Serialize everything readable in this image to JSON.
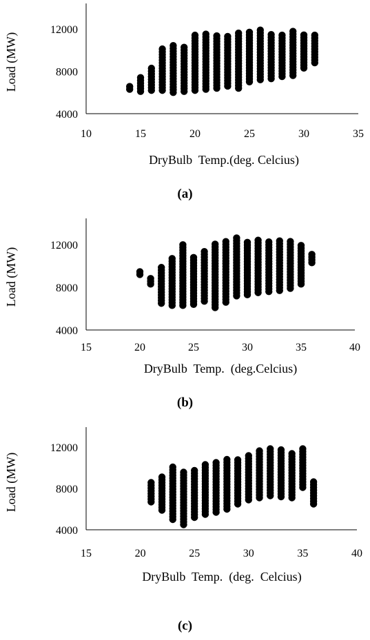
{
  "chart_data": [
    {
      "type": "scatter",
      "label": "(a)",
      "xlabel": "DryBulb  Temp.(deg. Celcius)",
      "ylabel": "Load (MW)",
      "xlim": [
        10,
        35
      ],
      "ylim": [
        4000,
        13000
      ],
      "xticks": [
        "10",
        "15",
        "20",
        "25",
        "30",
        "35"
      ],
      "yticks": [
        "4000",
        "8000",
        "12000"
      ],
      "marker_color": "#000000",
      "columns": [
        {
          "x": 14,
          "ymin": 6300,
          "ymax": 6700
        },
        {
          "x": 15,
          "ymin": 6100,
          "ymax": 7500
        },
        {
          "x": 16,
          "ymin": 6200,
          "ymax": 8300
        },
        {
          "x": 17,
          "ymin": 6200,
          "ymax": 10100
        },
        {
          "x": 18,
          "ymin": 6000,
          "ymax": 10500
        },
        {
          "x": 19,
          "ymin": 6100,
          "ymax": 10400
        },
        {
          "x": 20,
          "ymin": 6200,
          "ymax": 11500
        },
        {
          "x": 21,
          "ymin": 6300,
          "ymax": 11600
        },
        {
          "x": 22,
          "ymin": 6400,
          "ymax": 11500
        },
        {
          "x": 23,
          "ymin": 6600,
          "ymax": 11500
        },
        {
          "x": 24,
          "ymin": 6400,
          "ymax": 11800
        },
        {
          "x": 25,
          "ymin": 7000,
          "ymax": 11800
        },
        {
          "x": 26,
          "ymin": 7200,
          "ymax": 11900
        },
        {
          "x": 27,
          "ymin": 7300,
          "ymax": 11700
        },
        {
          "x": 28,
          "ymin": 7500,
          "ymax": 11600
        },
        {
          "x": 29,
          "ymin": 7600,
          "ymax": 11800
        },
        {
          "x": 30,
          "ymin": 8300,
          "ymax": 11500
        },
        {
          "x": 31,
          "ymin": 8800,
          "ymax": 11400
        }
      ]
    },
    {
      "type": "scatter",
      "label": "(b)",
      "xlabel": "DryBulb  Temp.  (deg.Celcius)",
      "ylabel": "Load (MW)",
      "xlim": [
        15,
        40
      ],
      "ylim": [
        4000,
        13000
      ],
      "xticks": [
        "15",
        "20",
        "25",
        "30",
        "35",
        "40"
      ],
      "yticks": [
        "4000",
        "8000",
        "12000"
      ],
      "marker_color": "#000000",
      "columns": [
        {
          "x": 20,
          "ymin": 9200,
          "ymax": 9700
        },
        {
          "x": 21,
          "ymin": 8300,
          "ymax": 8900
        },
        {
          "x": 22,
          "ymin": 6500,
          "ymax": 10000
        },
        {
          "x": 23,
          "ymin": 6300,
          "ymax": 10800
        },
        {
          "x": 24,
          "ymin": 6300,
          "ymax": 12000
        },
        {
          "x": 25,
          "ymin": 6400,
          "ymax": 10800
        },
        {
          "x": 26,
          "ymin": 6700,
          "ymax": 11400
        },
        {
          "x": 27,
          "ymin": 6100,
          "ymax": 12200
        },
        {
          "x": 28,
          "ymin": 6600,
          "ymax": 12500
        },
        {
          "x": 29,
          "ymin": 7200,
          "ymax": 12700
        },
        {
          "x": 30,
          "ymin": 7300,
          "ymax": 12400
        },
        {
          "x": 31,
          "ymin": 7500,
          "ymax": 12500
        },
        {
          "x": 32,
          "ymin": 7600,
          "ymax": 12400
        },
        {
          "x": 33,
          "ymin": 7700,
          "ymax": 12400
        },
        {
          "x": 34,
          "ymin": 7900,
          "ymax": 12300
        },
        {
          "x": 35,
          "ymin": 8300,
          "ymax": 12000
        },
        {
          "x": 36,
          "ymin": 10300,
          "ymax": 11300
        }
      ]
    },
    {
      "type": "scatter",
      "label": "(c)",
      "xlabel": "DryBulb  Temp.  (deg.  Celcius)",
      "ylabel": "Load (MW)",
      "xlim": [
        15,
        40
      ],
      "ylim": [
        4000,
        13000
      ],
      "xticks": [
        "15",
        "20",
        "25",
        "30",
        "35",
        "40"
      ],
      "yticks": [
        "4000",
        "8000",
        "12000"
      ],
      "marker_color": "#000000",
      "columns": [
        {
          "x": 21,
          "ymin": 6700,
          "ymax": 8600
        },
        {
          "x": 22,
          "ymin": 5900,
          "ymax": 9100
        },
        {
          "x": 23,
          "ymin": 5000,
          "ymax": 10300
        },
        {
          "x": 24,
          "ymin": 4500,
          "ymax": 9700
        },
        {
          "x": 25,
          "ymin": 5200,
          "ymax": 9900
        },
        {
          "x": 26,
          "ymin": 5500,
          "ymax": 10400
        },
        {
          "x": 27,
          "ymin": 5700,
          "ymax": 10600
        },
        {
          "x": 28,
          "ymin": 6000,
          "ymax": 10900
        },
        {
          "x": 29,
          "ymin": 6500,
          "ymax": 11000
        },
        {
          "x": 30,
          "ymin": 6900,
          "ymax": 11300
        },
        {
          "x": 31,
          "ymin": 7100,
          "ymax": 11800
        },
        {
          "x": 32,
          "ymin": 7300,
          "ymax": 12000
        },
        {
          "x": 33,
          "ymin": 7200,
          "ymax": 11800
        },
        {
          "x": 34,
          "ymin": 7100,
          "ymax": 11400
        },
        {
          "x": 35,
          "ymin": 8100,
          "ymax": 12000
        },
        {
          "x": 36,
          "ymin": 6500,
          "ymax": 8800
        }
      ]
    }
  ]
}
